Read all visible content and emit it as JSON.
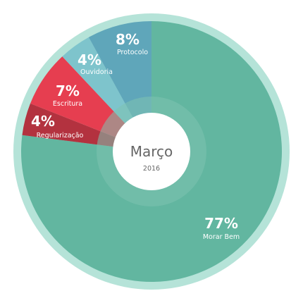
{
  "chart_data": {
    "type": "pie",
    "style": "donut",
    "center_title": "Março",
    "center_subtitle": "2016",
    "slices": [
      {
        "name": "Morar Bem",
        "value": 77,
        "label": "77%",
        "color": "#62b6a0"
      },
      {
        "name": "Regularização",
        "value": 4,
        "label": "4%",
        "color": "#b3323f"
      },
      {
        "name": "Escritura",
        "value": 7,
        "label": "7%",
        "color": "#e63e50"
      },
      {
        "name": "Ouvidoria",
        "value": 4,
        "label": "4%",
        "color": "#7ec4cc"
      },
      {
        "name": "Protocolo",
        "value": 8,
        "label": "8%",
        "color": "#5fa6ba"
      }
    ],
    "ring_color": "#b5e3d8",
    "inner_band_color": "#7dc2b0"
  }
}
